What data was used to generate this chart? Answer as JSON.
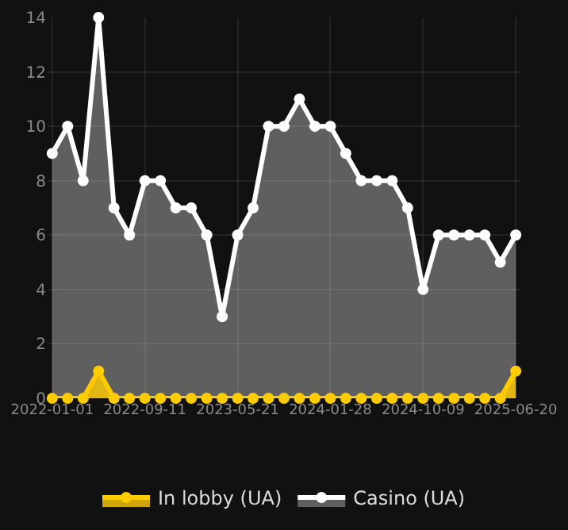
{
  "chart_data": {
    "type": "area",
    "categories": [
      "2022-01-01",
      null,
      null,
      null,
      null,
      null,
      "2022-09-11",
      null,
      null,
      null,
      null,
      null,
      "2023-05-21",
      null,
      null,
      null,
      null,
      null,
      "2024-01-28",
      null,
      null,
      null,
      null,
      null,
      "2024-10-09",
      null,
      null,
      null,
      null,
      null,
      "2025-06-20"
    ],
    "series": [
      {
        "name": "In lobby (UA)",
        "color": "#ffcc00",
        "values": [
          0,
          0,
          0,
          1,
          0,
          0,
          0,
          0,
          0,
          0,
          0,
          0,
          0,
          0,
          0,
          0,
          0,
          0,
          0,
          0,
          0,
          0,
          0,
          0,
          0,
          0,
          0,
          0,
          0,
          0,
          1
        ]
      },
      {
        "name": "Casino (UA)",
        "color": "#ffffff",
        "values": [
          9,
          10,
          8,
          14,
          7,
          6,
          8,
          8,
          7,
          7,
          6,
          3,
          6,
          7,
          10,
          10,
          11,
          10,
          10,
          9,
          8,
          8,
          8,
          7,
          4,
          6,
          6,
          6,
          6,
          5,
          6
        ]
      }
    ],
    "ylim": [
      0,
      14
    ],
    "yticks": [
      0,
      2,
      4,
      6,
      8,
      10,
      12,
      14
    ],
    "grid": true,
    "legend": "bottom",
    "marker": "circle",
    "line_style": "solid"
  }
}
